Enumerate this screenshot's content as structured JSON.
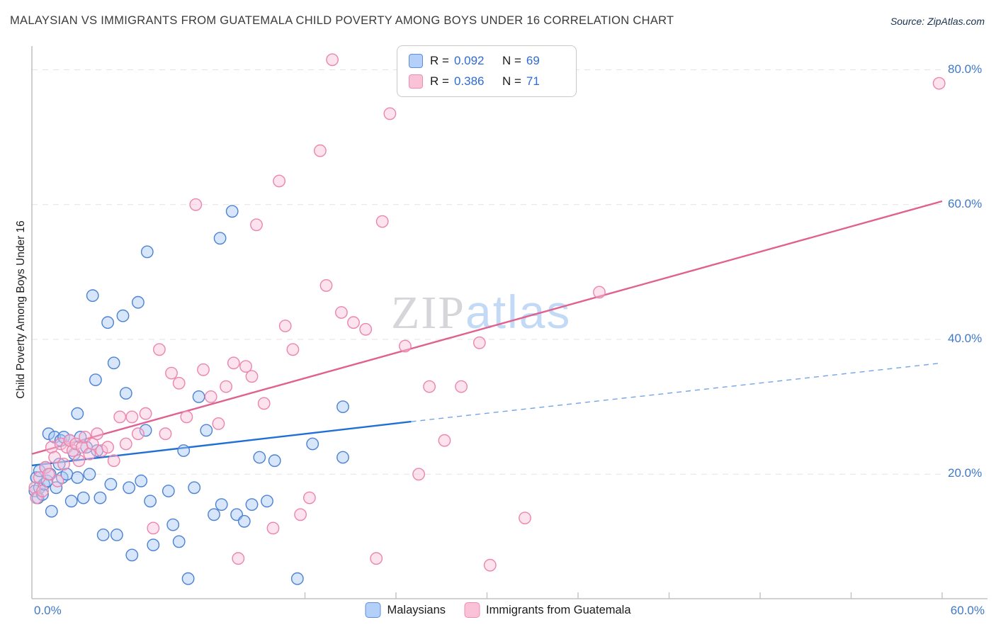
{
  "header": {
    "title": "MALAYSIAN VS IMMIGRANTS FROM GUATEMALA CHILD POVERTY AMONG BOYS UNDER 16 CORRELATION CHART",
    "source_label": "Source:",
    "source_value": "ZipAtlas.com"
  },
  "watermark": {
    "part1": "ZIP",
    "part2": "atlas"
  },
  "axes": {
    "y_label": "Child Poverty Among Boys Under 16",
    "x_min_label": "0.0%",
    "x_max_label": "60.0%"
  },
  "legend_box": {
    "rows": [
      {
        "series": "Malaysians",
        "r_label": "R =",
        "r": "0.092",
        "n_label": "N =",
        "n": "69"
      },
      {
        "series": "Immigrants from Guatemala",
        "r_label": "R =",
        "r": "0.386",
        "n_label": "N =",
        "n": "71"
      }
    ]
  },
  "bottom_legend": [
    {
      "label": "Malaysians"
    },
    {
      "label": "Immigrants from Guatemala"
    }
  ],
  "colors": {
    "blue_fill": "#a8c8f6",
    "blue_stroke": "#4b82d4",
    "blue_trend": "#1f6fd6",
    "blue_trend_dashed": "#74a4e6",
    "pink_fill": "#f9c2d6",
    "pink_stroke": "#ec85ad",
    "pink_trend": "#e0618f",
    "axis_line": "#c2c2c2",
    "gridline": "#e3e3e3",
    "tick_label_blue": "#3f78c9"
  },
  "chart_data": {
    "type": "scatter",
    "title": "Malaysian vs Immigrants from Guatemala Child Poverty Among Boys Under 16",
    "xlabel": "",
    "ylabel": "Child Poverty Among Boys Under 16",
    "xlim": [
      0,
      60
    ],
    "ylim": [
      0,
      84
    ],
    "grid": "horizontal-dashed",
    "x_ticks": [
      18,
      24,
      30,
      36,
      42,
      48,
      54,
      60
    ],
    "y_gridlines": [
      20,
      40,
      60,
      80
    ],
    "y_tick_labels": [
      "20.0%",
      "40.0%",
      "60.0%",
      "80.0%"
    ],
    "series": [
      {
        "id": "malaysians",
        "name": "Malaysians",
        "R": 0.092,
        "N": 69,
        "fill": "#a8c8f6",
        "stroke": "#4b82d4",
        "points": [
          [
            0.2,
            17.5
          ],
          [
            0.3,
            19.5
          ],
          [
            0.4,
            16.5
          ],
          [
            0.5,
            18.0
          ],
          [
            0.5,
            20.5
          ],
          [
            0.7,
            17.0
          ],
          [
            0.8,
            18.5
          ],
          [
            0.9,
            21.0
          ],
          [
            1.0,
            19.0
          ],
          [
            1.1,
            26.0
          ],
          [
            1.2,
            20.0
          ],
          [
            1.3,
            14.5
          ],
          [
            1.5,
            25.5
          ],
          [
            1.6,
            18.0
          ],
          [
            1.8,
            21.5
          ],
          [
            1.9,
            25.0
          ],
          [
            2.0,
            19.5
          ],
          [
            2.1,
            25.5
          ],
          [
            2.3,
            20.0
          ],
          [
            2.5,
            25.0
          ],
          [
            2.6,
            16.0
          ],
          [
            2.8,
            23.0
          ],
          [
            3.0,
            19.5
          ],
          [
            3.0,
            29.0
          ],
          [
            3.2,
            25.5
          ],
          [
            3.4,
            16.5
          ],
          [
            3.6,
            24.0
          ],
          [
            3.8,
            20.0
          ],
          [
            4.0,
            46.5
          ],
          [
            4.2,
            34.0
          ],
          [
            4.3,
            23.5
          ],
          [
            4.5,
            16.5
          ],
          [
            4.7,
            11.0
          ],
          [
            5.0,
            42.5
          ],
          [
            5.2,
            18.5
          ],
          [
            5.4,
            36.5
          ],
          [
            5.6,
            11.0
          ],
          [
            6.0,
            43.5
          ],
          [
            6.2,
            32.0
          ],
          [
            6.4,
            18.0
          ],
          [
            6.6,
            8.0
          ],
          [
            7.0,
            45.5
          ],
          [
            7.2,
            19.0
          ],
          [
            7.5,
            26.5
          ],
          [
            7.8,
            16.0
          ],
          [
            8.0,
            9.5
          ],
          [
            7.6,
            53.0
          ],
          [
            9.0,
            17.5
          ],
          [
            9.3,
            12.5
          ],
          [
            9.7,
            10.0
          ],
          [
            10.0,
            23.5
          ],
          [
            10.3,
            4.5
          ],
          [
            10.7,
            18.0
          ],
          [
            11.0,
            31.5
          ],
          [
            11.5,
            26.5
          ],
          [
            12.0,
            14.0
          ],
          [
            12.5,
            15.5
          ],
          [
            12.4,
            55.0
          ],
          [
            13.5,
            14.0
          ],
          [
            14.0,
            13.0
          ],
          [
            14.5,
            15.5
          ],
          [
            15.0,
            22.5
          ],
          [
            15.5,
            16.0
          ],
          [
            16.0,
            22.0
          ],
          [
            13.2,
            59.0
          ],
          [
            17.5,
            4.5
          ],
          [
            18.5,
            24.5
          ],
          [
            20.5,
            22.5
          ],
          [
            20.5,
            30.0
          ]
        ]
      },
      {
        "id": "guatemala",
        "name": "Immigrants from Guatemala",
        "R": 0.386,
        "N": 71,
        "fill": "#f9c2d6",
        "stroke": "#ec85ad",
        "points": [
          [
            0.2,
            18.0
          ],
          [
            0.3,
            16.5
          ],
          [
            0.5,
            19.5
          ],
          [
            0.7,
            17.5
          ],
          [
            0.9,
            21.0
          ],
          [
            1.1,
            20.0
          ],
          [
            1.3,
            24.0
          ],
          [
            1.5,
            22.5
          ],
          [
            1.7,
            19.0
          ],
          [
            1.9,
            24.5
          ],
          [
            2.1,
            21.5
          ],
          [
            2.3,
            24.0
          ],
          [
            2.5,
            25.0
          ],
          [
            2.7,
            23.5
          ],
          [
            2.9,
            24.5
          ],
          [
            3.1,
            22.0
          ],
          [
            3.3,
            24.0
          ],
          [
            3.5,
            25.5
          ],
          [
            3.8,
            23.0
          ],
          [
            4.0,
            24.5
          ],
          [
            4.3,
            26.0
          ],
          [
            4.6,
            23.5
          ],
          [
            5.0,
            24.0
          ],
          [
            5.4,
            22.0
          ],
          [
            5.8,
            28.5
          ],
          [
            6.2,
            24.5
          ],
          [
            6.6,
            28.5
          ],
          [
            7.0,
            26.0
          ],
          [
            7.5,
            29.0
          ],
          [
            8.0,
            12.0
          ],
          [
            8.4,
            38.5
          ],
          [
            8.8,
            26.0
          ],
          [
            9.2,
            35.0
          ],
          [
            9.7,
            33.5
          ],
          [
            10.2,
            28.5
          ],
          [
            10.8,
            60.0
          ],
          [
            11.3,
            35.5
          ],
          [
            11.8,
            31.5
          ],
          [
            12.3,
            27.5
          ],
          [
            12.8,
            33.0
          ],
          [
            13.3,
            36.5
          ],
          [
            13.6,
            7.5
          ],
          [
            14.1,
            36.0
          ],
          [
            14.5,
            34.5
          ],
          [
            14.8,
            57.0
          ],
          [
            15.3,
            30.5
          ],
          [
            15.9,
            12.0
          ],
          [
            16.3,
            63.5
          ],
          [
            16.7,
            42.0
          ],
          [
            17.2,
            38.5
          ],
          [
            17.7,
            14.0
          ],
          [
            18.3,
            16.5
          ],
          [
            19.0,
            68.0
          ],
          [
            19.4,
            48.0
          ],
          [
            19.8,
            81.5
          ],
          [
            20.4,
            44.0
          ],
          [
            21.2,
            42.5
          ],
          [
            22.0,
            41.5
          ],
          [
            22.7,
            7.5
          ],
          [
            23.1,
            57.5
          ],
          [
            23.6,
            73.5
          ],
          [
            24.6,
            39.0
          ],
          [
            25.5,
            20.0
          ],
          [
            26.2,
            33.0
          ],
          [
            27.2,
            25.0
          ],
          [
            28.3,
            33.0
          ],
          [
            29.5,
            39.5
          ],
          [
            30.2,
            6.5
          ],
          [
            32.5,
            13.5
          ],
          [
            37.4,
            47.0
          ],
          [
            59.8,
            78.0
          ]
        ]
      }
    ],
    "trend_lines": [
      {
        "id": "malaysians",
        "color": "#1f6fd6",
        "dash_color": "#74a4e6",
        "solid": [
          [
            0,
            21.3
          ],
          [
            25,
            27.8
          ]
        ],
        "dashed": [
          [
            25,
            27.8
          ],
          [
            60,
            36.5
          ]
        ]
      },
      {
        "id": "guatemala",
        "color": "#e0618f",
        "solid": [
          [
            0,
            23.0
          ],
          [
            60,
            60.5
          ]
        ]
      }
    ],
    "legend_position": "bottom-center"
  }
}
